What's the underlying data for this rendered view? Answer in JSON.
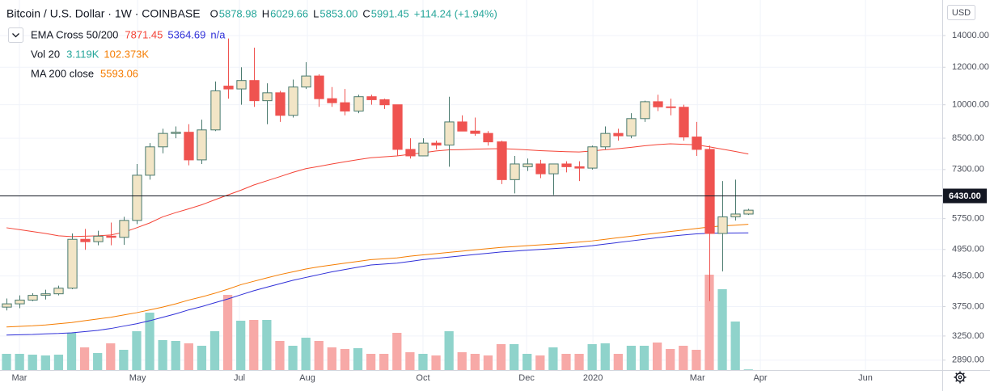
{
  "chart_data": {
    "type": "candlestick",
    "title": "Bitcoin / U.S. Dollar · 1W · COINBASE",
    "ohlc_legend": [
      {
        "key": "O",
        "label": "5878.98"
      },
      {
        "key": "H",
        "label": "6029.66"
      },
      {
        "key": "L",
        "label": "5853.00"
      },
      {
        "key": "C",
        "label": "5991.45"
      }
    ],
    "change": "+114.24 (+1.94%)",
    "legend_color": "#26a69a",
    "currency": "USD",
    "log_scale": true,
    "grid": true,
    "categories": [
      null,
      null,
      null,
      null,
      null,
      null,
      null,
      null,
      null,
      null,
      null,
      null,
      null,
      null,
      null,
      null,
      null,
      null,
      null,
      null,
      null,
      null,
      null,
      null,
      null,
      null,
      null,
      null,
      null,
      null,
      null,
      null,
      null,
      null,
      null,
      null,
      null,
      null,
      null,
      null,
      null,
      null,
      null,
      null,
      null,
      null,
      null,
      null,
      null,
      null,
      null,
      null,
      null,
      null,
      null,
      null,
      null,
      null
    ],
    "xlim": [
      -0.5,
      71.9
    ],
    "xticks": [
      {
        "value": 0.99,
        "label": "Mar"
      },
      {
        "value": 10.07,
        "label": "May"
      },
      {
        "value": 17.9,
        "label": "Jul"
      },
      {
        "value": 23.12,
        "label": "Aug"
      },
      {
        "value": 32.0,
        "label": "Oct"
      },
      {
        "value": 39.96,
        "label": "Dec"
      },
      {
        "value": 45.06,
        "label": "2020"
      },
      {
        "value": 53.08,
        "label": "Mar"
      },
      {
        "value": 57.92,
        "label": "Apr"
      },
      {
        "value": 66.0,
        "label": "Jun"
      }
    ],
    "ylim": [
      2755,
      16640
    ],
    "yticks": [
      {
        "value": 14000,
        "label": "14000.00"
      },
      {
        "value": 12000,
        "label": "12000.00"
      },
      {
        "value": 10000,
        "label": "10000.00"
      },
      {
        "value": 8500,
        "label": "8500.00"
      },
      {
        "value": 7300,
        "label": "7300.00"
      },
      {
        "value": 5750,
        "label": "5750.00"
      },
      {
        "value": 4950,
        "label": "4950.00"
      },
      {
        "value": 4350,
        "label": "4350.00"
      },
      {
        "value": 3750,
        "label": "3750.00"
      },
      {
        "value": 3250,
        "label": "3250.00"
      },
      {
        "value": 2890,
        "label": "2890.00"
      }
    ],
    "up_color": "#f2e5c6",
    "up_line_color": "#4a7a6e",
    "down_color": "#ef5350",
    "open": [
      3740,
      3800,
      3870,
      3960,
      3990,
      4100,
      5200,
      5140,
      5280,
      5250,
      5700,
      7100,
      8150,
      8700,
      8750,
      7650,
      8850,
      10950,
      10800,
      11250,
      10200,
      10600,
      9500,
      10900,
      11500,
      10300,
      10100,
      9700,
      10400,
      10250,
      10000,
      8050,
      7800,
      8300,
      8220,
      9200,
      8800,
      8700,
      8350,
      6950,
      7400,
      7500,
      7150,
      7500,
      7400,
      7350,
      8150,
      8700,
      8600,
      9350,
      10150,
      9900,
      9880,
      8550,
      8050,
      5350,
      5800,
      5878.98
    ],
    "high": [
      3900,
      3960,
      4000,
      4070,
      4150,
      5350,
      5470,
      5420,
      5640,
      5800,
      7500,
      8300,
      8900,
      9000,
      9100,
      9300,
      11200,
      13800,
      12000,
      13200,
      11100,
      10700,
      11300,
      12300,
      11600,
      10900,
      10800,
      10500,
      10500,
      10300,
      10000,
      8500,
      8500,
      8400,
      10400,
      9500,
      9400,
      8800,
      8400,
      7800,
      7700,
      7650,
      7500,
      7600,
      7600,
      8200,
      9000,
      8900,
      9600,
      10200,
      10500,
      10300,
      10000,
      9200,
      8200,
      6900,
      6950,
      6029.66
    ],
    "low": [
      3680,
      3720,
      3850,
      3880,
      3960,
      4080,
      4940,
      5050,
      5050,
      5060,
      5600,
      6950,
      7900,
      8500,
      7450,
      7500,
      8800,
      10300,
      10000,
      9900,
      9100,
      9200,
      9400,
      10800,
      9900,
      9900,
      9500,
      9600,
      10000,
      9800,
      7800,
      7700,
      7800,
      8050,
      7400,
      8800,
      8600,
      8200,
      6800,
      6500,
      7250,
      7000,
      6450,
      7200,
      6900,
      7300,
      8050,
      8400,
      8500,
      9200,
      9700,
      9500,
      8400,
      7800,
      3850,
      4450,
      5700,
      5853
    ],
    "close": [
      3800,
      3870,
      3960,
      3990,
      4100,
      5200,
      5140,
      5280,
      5250,
      5700,
      7100,
      8150,
      8700,
      8750,
      7650,
      8850,
      10700,
      10800,
      11250,
      10200,
      10600,
      9500,
      10900,
      11500,
      10300,
      10100,
      9700,
      10400,
      10250,
      10000,
      8050,
      7800,
      8300,
      8220,
      9200,
      8800,
      8700,
      8350,
      6950,
      7500,
      7500,
      7150,
      7500,
      7400,
      7350,
      8150,
      8700,
      8600,
      9350,
      10150,
      9900,
      9880,
      8550,
      8050,
      5350,
      5800,
      5880,
      5991.45
    ],
    "series": [
      {
        "name": "EMA Cross 50/200",
        "note": "n/a",
        "note_color": "#3030d8",
        "lines": [
          {
            "color": "#f44336",
            "values": [
              5500,
              5450,
              5400,
              5350,
              5290,
              5270,
              5280,
              5290,
              5310,
              5380,
              5500,
              5630,
              5800,
              5920,
              6030,
              6150,
              6300,
              6450,
              6600,
              6770,
              6910,
              7050,
              7200,
              7330,
              7410,
              7500,
              7580,
              7660,
              7730,
              7765,
              7800,
              7860,
              7920,
              7990,
              8030,
              8040,
              8060,
              8070,
              8080,
              8060,
              8030,
              8000,
              7980,
              7960,
              7950,
              7990,
              8040,
              8080,
              8130,
              8190,
              8240,
              8270,
              8250,
              8230,
              8150,
              8060,
              7970,
              7871.45
            ]
          },
          {
            "color": "#3030d8",
            "values": [
              3265,
              3270,
              3275,
              3285,
              3290,
              3300,
              3320,
              3340,
              3370,
              3410,
              3450,
              3500,
              3560,
              3620,
              3690,
              3750,
              3820,
              3890,
              3970,
              4050,
              4120,
              4190,
              4260,
              4320,
              4380,
              4440,
              4490,
              4540,
              4590,
              4610,
              4630,
              4670,
              4710,
              4740,
              4770,
              4800,
              4830,
              4860,
              4890,
              4910,
              4930,
              4950,
              4970,
              4990,
              5010,
              5040,
              5080,
              5120,
              5160,
              5200,
              5240,
              5280,
              5310,
              5340,
              5355,
              5360,
              5362,
              5364.69
            ]
          }
        ]
      },
      {
        "name": "MA 200 close",
        "color": "#f57c00",
        "values": [
          3395,
          3405,
          3415,
          3430,
          3450,
          3470,
          3500,
          3530,
          3560,
          3600,
          3640,
          3690,
          3740,
          3800,
          3870,
          3930,
          4000,
          4080,
          4170,
          4240,
          4310,
          4380,
          4440,
          4500,
          4550,
          4590,
          4630,
          4670,
          4710,
          4730,
          4750,
          4790,
          4820,
          4850,
          4880,
          4910,
          4940,
          4970,
          5000,
          5020,
          5040,
          5060,
          5080,
          5100,
          5130,
          5160,
          5200,
          5240,
          5280,
          5320,
          5360,
          5400,
          5440,
          5480,
          5520,
          5550,
          5570,
          5593.06
        ]
      }
    ],
    "volume": {
      "name": "Vol 20",
      "ylim": [
        0,
        560
      ],
      "up_color": "#8fd3cb",
      "down_color": "#f7a9a7",
      "legend_values": [
        "3.119K",
        "102.373K"
      ],
      "legend_colors": [
        "#26a69a",
        "#f57c00"
      ],
      "values": [
        80,
        80,
        76,
        72,
        76,
        184,
        112,
        84,
        132,
        100,
        192,
        284,
        148,
        144,
        132,
        120,
        192,
        372,
        244,
        248,
        248,
        144,
        120,
        160,
        144,
        112,
        104,
        108,
        80,
        80,
        184,
        88,
        80,
        72,
        192,
        88,
        80,
        72,
        128,
        128,
        80,
        72,
        112,
        80,
        80,
        128,
        132,
        80,
        120,
        120,
        136,
        104,
        120,
        100,
        472,
        400,
        240,
        3.119
      ]
    },
    "hline": {
      "value": 6430,
      "label": "6430.00",
      "color": "#131722"
    }
  }
}
